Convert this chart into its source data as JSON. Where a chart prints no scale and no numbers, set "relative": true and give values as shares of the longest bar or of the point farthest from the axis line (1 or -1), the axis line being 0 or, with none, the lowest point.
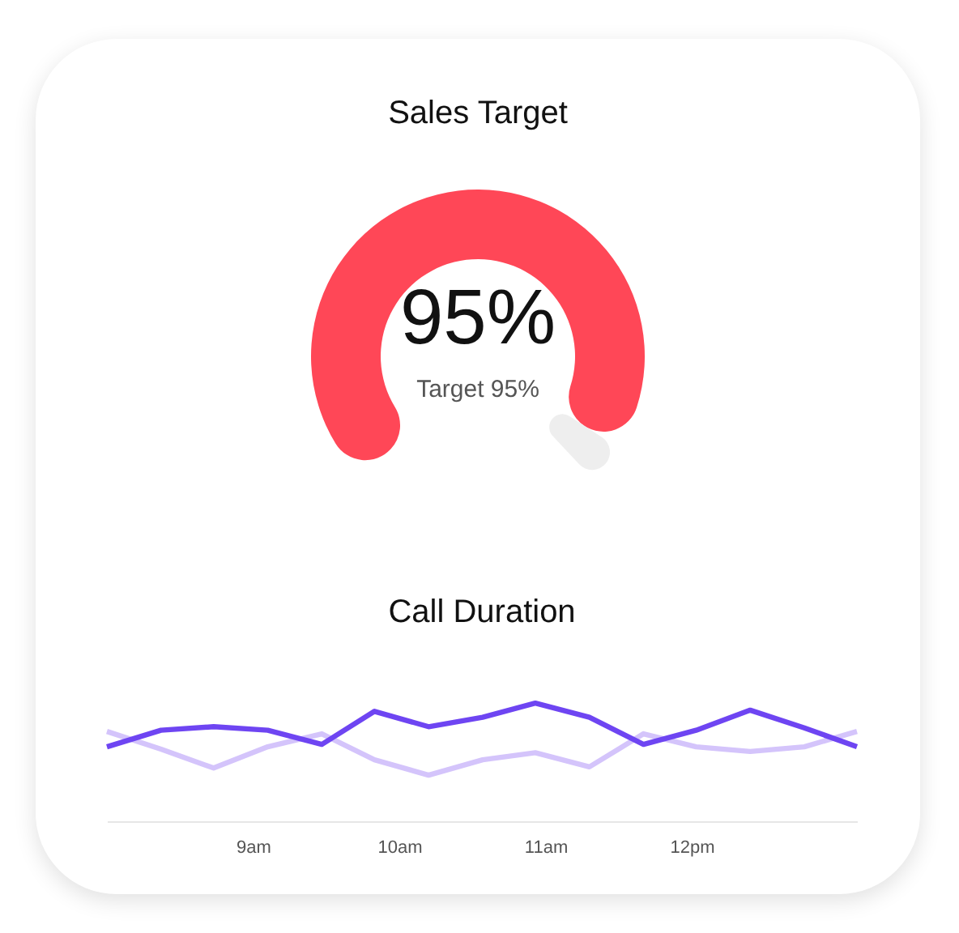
{
  "chart_data": [
    {
      "type": "donut",
      "title": "Sales Target",
      "categories": [
        null,
        null
      ],
      "values": [
        95,
        5
      ],
      "colors": [
        "#ff4757",
        "#eeeeee"
      ],
      "annotations": [
        "95%",
        "Target 95%"
      ]
    },
    {
      "type": "line",
      "title": "Call Duration",
      "relative": true,
      "legend": false,
      "x": [
        8,
        8.37,
        8.73,
        9.1,
        9.47,
        9.83,
        10.2,
        10.57,
        10.93,
        11.3,
        11.67,
        12.03,
        12.4,
        12.77,
        13.13
      ],
      "xlim": [
        8,
        13.13
      ],
      "xticks": [
        {
          "value": 9,
          "label": "9am"
        },
        {
          "value": 10,
          "label": "10am"
        },
        {
          "value": 11,
          "label": "11am"
        },
        {
          "value": 12,
          "label": "12pm"
        }
      ],
      "tick_labels": "x",
      "series": [
        {
          "color": "#d4c4fb",
          "values": [
            0.76,
            0.61,
            0.45,
            0.63,
            0.74,
            0.52,
            0.39,
            0.52,
            0.58,
            0.46,
            0.74,
            0.63,
            0.59,
            0.63,
            0.76
          ]
        },
        {
          "color": "#6e45f2",
          "values": [
            0.63,
            0.77,
            0.8,
            0.77,
            0.65,
            0.93,
            0.8,
            0.88,
            1,
            0.88,
            0.65,
            0.77,
            0.94,
            0.79,
            0.63
          ]
        }
      ]
    }
  ]
}
